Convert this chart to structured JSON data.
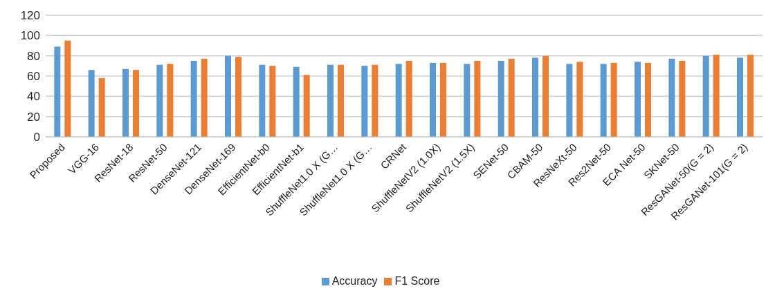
{
  "chart_data": {
    "type": "bar",
    "categories": [
      "Proposed",
      "VGG-16",
      "ResNet-18",
      "ResNet-50",
      "DenseNet-121",
      "DenseNet-169",
      "EfficientNet-b0",
      "EfficientNet-b1",
      "ShuffleNet1.0 X (G…",
      "ShuffleNet1.0 X (G…",
      "CRNet",
      "ShuffleNetV2 (1.0X)",
      "ShuffleNetV2 (1.5X)",
      "SENet-50",
      "CBAM-50",
      "ResNeXt-50",
      "Res2Net-50",
      "ECA Net-50",
      "SKNet-50",
      "ResGANet-50(G = 2)",
      "ResGANet-101(G = 2)"
    ],
    "series": [
      {
        "name": "Accuracy",
        "color": "#5b9bd5",
        "values": [
          89,
          66,
          67,
          71,
          75,
          80,
          71,
          69,
          71,
          70,
          72,
          73,
          72,
          75,
          78,
          72,
          72,
          74,
          77,
          80,
          78
        ]
      },
      {
        "name": "F1 Score",
        "color": "#ed7d31",
        "values": [
          95,
          58,
          66,
          72,
          77,
          79,
          70,
          61,
          71,
          71,
          75,
          73,
          75,
          77,
          80,
          74,
          73,
          73,
          75,
          81,
          81
        ]
      }
    ],
    "ylim": [
      0,
      120
    ],
    "yticks": [
      0,
      20,
      40,
      60,
      80,
      100,
      120
    ],
    "grid": "y",
    "legend": "bottom"
  }
}
